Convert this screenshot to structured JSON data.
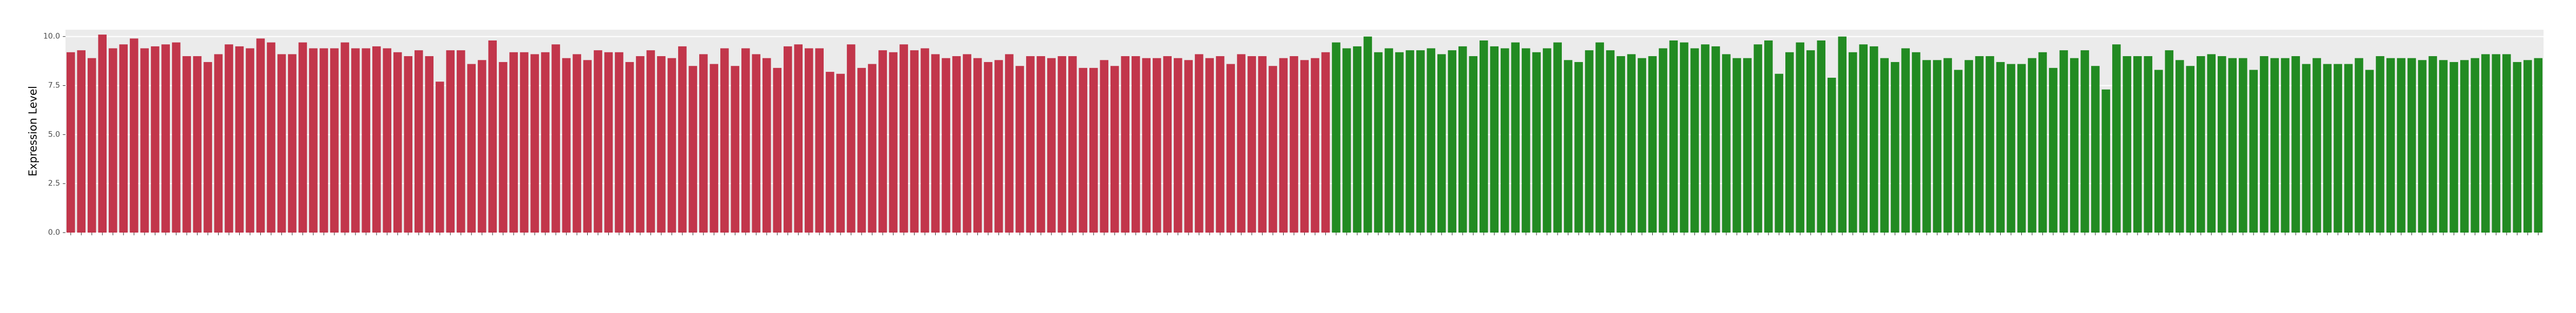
{
  "chart_data": {
    "type": "bar",
    "y_label": "Expression Level",
    "categories": [
      null,
      null,
      null,
      null,
      null,
      null,
      null,
      null,
      null,
      null,
      null,
      null,
      null,
      null,
      null,
      null,
      null,
      null,
      null,
      null,
      null,
      null,
      null,
      null,
      null,
      null,
      null,
      null,
      null,
      null,
      null,
      null,
      null,
      null,
      null,
      null,
      null,
      null,
      null,
      null,
      null,
      null,
      null,
      null,
      null,
      null,
      null,
      null,
      null,
      null,
      null,
      null,
      null,
      null,
      null,
      null,
      null,
      null,
      null,
      null,
      null,
      null,
      null,
      null,
      null,
      null,
      null,
      null,
      null,
      null,
      null,
      null,
      null,
      null,
      null,
      null,
      null,
      null,
      null,
      null,
      null,
      null,
      null,
      null,
      null,
      null,
      null,
      null,
      null,
      null,
      null,
      null,
      null,
      null,
      null,
      null,
      null,
      null,
      null,
      null,
      null,
      null,
      null,
      null,
      null,
      null,
      null,
      null,
      null,
      null,
      null,
      null,
      null,
      null,
      null,
      null,
      null,
      null,
      null,
      null,
      null,
      null,
      null,
      null,
      null,
      null,
      null,
      null,
      null,
      null,
      null,
      null,
      null,
      null,
      null,
      null,
      null,
      null,
      null,
      null,
      null,
      null,
      null,
      null,
      null,
      null,
      null,
      null,
      null,
      null,
      null,
      null,
      null,
      null,
      null,
      null,
      null,
      null,
      null,
      null,
      null,
      null,
      null,
      null,
      null,
      null,
      null,
      null,
      null,
      null,
      null,
      null,
      null,
      null,
      null,
      null,
      null,
      null,
      null,
      null,
      null,
      null,
      null,
      null,
      null,
      null,
      null,
      null,
      null,
      null,
      null,
      null,
      null,
      null,
      null,
      null,
      null,
      null,
      null,
      null,
      null,
      null,
      null,
      null,
      null,
      null,
      null,
      null,
      null,
      null,
      null,
      null,
      null,
      null,
      null,
      null,
      null,
      null,
      null,
      null,
      null,
      null,
      null,
      null,
      null,
      null,
      null,
      null,
      null,
      null,
      null,
      null,
      null,
      null,
      null
    ],
    "values": [
      9.2,
      9.3,
      8.9,
      10.1,
      9.4,
      9.6,
      9.9,
      9.4,
      9.5,
      9.6,
      9.7,
      9.0,
      9.0,
      8.7,
      9.1,
      9.6,
      9.5,
      9.4,
      9.9,
      9.7,
      9.1,
      9.1,
      9.7,
      9.4,
      9.4,
      9.4,
      9.7,
      9.4,
      9.4,
      9.5,
      9.4,
      9.2,
      9.0,
      9.3,
      9.0,
      7.7,
      9.3,
      9.3,
      8.6,
      8.8,
      9.8,
      8.7,
      9.2,
      9.2,
      9.1,
      9.2,
      9.6,
      8.9,
      9.1,
      8.8,
      9.3,
      9.2,
      9.2,
      8.7,
      9.0,
      9.3,
      9.0,
      8.9,
      9.5,
      8.5,
      9.1,
      8.6,
      9.4,
      8.5,
      9.4,
      9.1,
      8.9,
      8.4,
      9.5,
      9.6,
      9.4,
      9.4,
      8.2,
      8.1,
      9.6,
      8.4,
      8.6,
      9.3,
      9.2,
      9.6,
      9.3,
      9.4,
      9.1,
      8.9,
      9.0,
      9.1,
      8.9,
      8.7,
      8.8,
      9.1,
      8.5,
      9.0,
      9.0,
      8.9,
      9.0,
      9.0,
      8.4,
      8.4,
      8.8,
      8.5,
      9.0,
      9.0,
      8.9,
      8.9,
      9.0,
      8.9,
      8.8,
      9.1,
      8.9,
      9.0,
      8.6,
      9.1,
      9.0,
      9.0,
      8.5,
      8.9,
      9.0,
      8.8,
      8.9,
      9.2,
      9.7,
      9.4,
      9.5,
      10.0,
      9.2,
      9.4,
      9.2,
      9.3,
      9.3,
      9.4,
      9.1,
      9.3,
      9.5,
      9.0,
      9.8,
      9.5,
      9.4,
      9.7,
      9.4,
      9.2,
      9.4,
      9.7,
      8.8,
      8.7,
      9.3,
      9.7,
      9.3,
      9.0,
      9.1,
      8.9,
      9.0,
      9.4,
      9.8,
      9.7,
      9.4,
      9.6,
      9.5,
      9.1,
      8.9,
      8.9,
      9.6,
      9.8,
      8.1,
      9.2,
      9.7,
      9.3,
      9.8,
      7.9,
      10.0,
      9.2,
      9.6,
      9.5,
      8.9,
      8.7,
      9.4,
      9.2,
      8.8,
      8.8,
      8.9,
      8.3,
      8.8,
      9.0,
      9.0,
      8.7,
      8.6,
      8.6,
      8.9,
      9.2,
      8.4,
      9.3,
      8.9,
      9.3,
      8.5,
      7.3,
      9.6,
      9.0,
      9.0,
      9.0,
      8.3,
      9.3,
      8.8,
      8.5,
      9.0,
      9.1,
      9.0,
      8.9,
      8.9,
      8.3,
      9.0,
      8.9,
      8.9,
      9.0,
      8.6,
      8.9,
      8.6,
      8.6,
      8.6,
      8.9,
      8.3,
      9.0,
      8.9,
      8.9,
      8.9,
      8.8,
      9.0,
      8.8,
      8.7,
      8.8,
      8.9,
      9.1,
      9.1,
      9.1,
      8.7,
      8.8,
      8.9
    ],
    "colors": [
      "#c2364b",
      "#c2364b",
      "#c2364b",
      "#c2364b",
      "#c2364b",
      "#c2364b",
      "#c2364b",
      "#c2364b",
      "#c2364b",
      "#c2364b",
      "#c2364b",
      "#c2364b",
      "#c2364b",
      "#c2364b",
      "#c2364b",
      "#c2364b",
      "#c2364b",
      "#c2364b",
      "#c2364b",
      "#c2364b",
      "#c2364b",
      "#c2364b",
      "#c2364b",
      "#c2364b",
      "#c2364b",
      "#c2364b",
      "#c2364b",
      "#c2364b",
      "#c2364b",
      "#c2364b",
      "#c2364b",
      "#c2364b",
      "#c2364b",
      "#c2364b",
      "#c2364b",
      "#c2364b",
      "#c2364b",
      "#c2364b",
      "#c2364b",
      "#c2364b",
      "#c2364b",
      "#c2364b",
      "#c2364b",
      "#c2364b",
      "#c2364b",
      "#c2364b",
      "#c2364b",
      "#c2364b",
      "#c2364b",
      "#c2364b",
      "#c2364b",
      "#c2364b",
      "#c2364b",
      "#c2364b",
      "#c2364b",
      "#c2364b",
      "#c2364b",
      "#c2364b",
      "#c2364b",
      "#c2364b",
      "#c2364b",
      "#c2364b",
      "#c2364b",
      "#c2364b",
      "#c2364b",
      "#c2364b",
      "#c2364b",
      "#c2364b",
      "#c2364b",
      "#c2364b",
      "#c2364b",
      "#c2364b",
      "#c2364b",
      "#c2364b",
      "#c2364b",
      "#c2364b",
      "#c2364b",
      "#c2364b",
      "#c2364b",
      "#c2364b",
      "#c2364b",
      "#c2364b",
      "#c2364b",
      "#c2364b",
      "#c2364b",
      "#c2364b",
      "#c2364b",
      "#c2364b",
      "#c2364b",
      "#c2364b",
      "#c2364b",
      "#c2364b",
      "#c2364b",
      "#c2364b",
      "#c2364b",
      "#c2364b",
      "#c2364b",
      "#c2364b",
      "#c2364b",
      "#c2364b",
      "#c2364b",
      "#c2364b",
      "#c2364b",
      "#c2364b",
      "#c2364b",
      "#c2364b",
      "#c2364b",
      "#c2364b",
      "#c2364b",
      "#c2364b",
      "#c2364b",
      "#c2364b",
      "#c2364b",
      "#c2364b",
      "#c2364b",
      "#c2364b",
      "#c2364b",
      "#c2364b",
      "#c2364b",
      "#c2364b",
      "#228b22",
      "#228b22",
      "#228b22",
      "#228b22",
      "#228b22",
      "#228b22",
      "#228b22",
      "#228b22",
      "#228b22",
      "#228b22",
      "#228b22",
      "#228b22",
      "#228b22",
      "#228b22",
      "#228b22",
      "#228b22",
      "#228b22",
      "#228b22",
      "#228b22",
      "#228b22",
      "#228b22",
      "#228b22",
      "#228b22",
      "#228b22",
      "#228b22",
      "#228b22",
      "#228b22",
      "#228b22",
      "#228b22",
      "#228b22",
      "#228b22",
      "#228b22",
      "#228b22",
      "#228b22",
      "#228b22",
      "#228b22",
      "#228b22",
      "#228b22",
      "#228b22",
      "#228b22",
      "#228b22",
      "#228b22",
      "#228b22",
      "#228b22",
      "#228b22",
      "#228b22",
      "#228b22",
      "#228b22",
      "#228b22",
      "#228b22",
      "#228b22",
      "#228b22",
      "#228b22",
      "#228b22",
      "#228b22",
      "#228b22",
      "#228b22",
      "#228b22",
      "#228b22",
      "#228b22",
      "#228b22",
      "#228b22",
      "#228b22",
      "#228b22",
      "#228b22",
      "#228b22",
      "#228b22",
      "#228b22",
      "#228b22",
      "#228b22",
      "#228b22",
      "#228b22",
      "#228b22",
      "#228b22",
      "#228b22",
      "#228b22",
      "#228b22",
      "#228b22",
      "#228b22",
      "#228b22",
      "#228b22",
      "#228b22",
      "#228b22",
      "#228b22",
      "#228b22",
      "#228b22",
      "#228b22",
      "#228b22",
      "#228b22",
      "#228b22",
      "#228b22",
      "#228b22",
      "#228b22",
      "#228b22",
      "#228b22",
      "#228b22",
      "#228b22",
      "#228b22",
      "#228b22",
      "#228b22",
      "#228b22",
      "#228b22",
      "#228b22",
      "#228b22",
      "#228b22",
      "#228b22",
      "#228b22",
      "#228b22",
      "#228b22",
      "#228b22",
      "#228b22",
      "#228b22",
      "#228b22",
      "#228b22",
      "#228b22"
    ],
    "ylim": [
      0,
      10.35
    ],
    "yticks": [
      {
        "value": 0,
        "label": "0.0"
      },
      2.5,
      {
        "value": 5,
        "label": "5.0"
      },
      7.5,
      {
        "value": 10,
        "label": "10.0"
      }
    ],
    "grid": true
  }
}
